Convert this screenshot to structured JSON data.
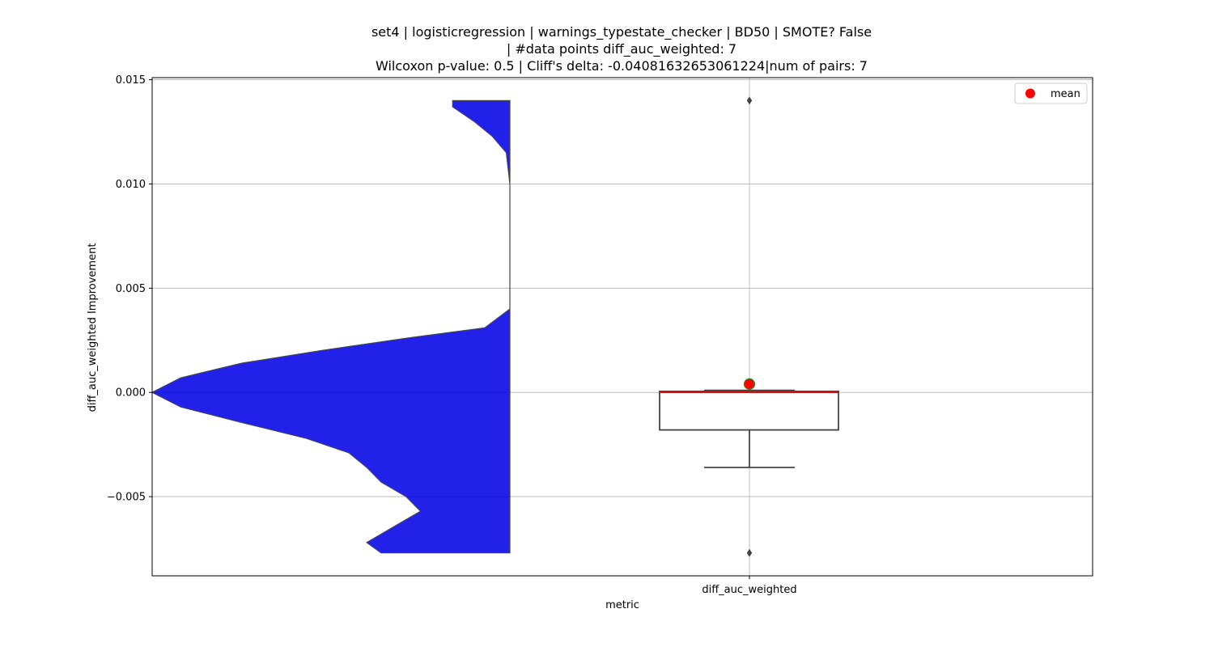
{
  "chart_data": {
    "type": "violin",
    "title_lines": [
      "set4 | logisticregression | warnings_typestate_checker | BD50 | SMOTE? False",
      "| #data points diff_auc_weighted: 7",
      "Wilcoxon p-value: 0.5 | Cliff's delta: -0.04081632653061224|num of pairs: 7"
    ],
    "xlabel": "metric",
    "ylabel": "diff_auc_weighted Improvement",
    "categories": [
      "diff_auc_weighted"
    ],
    "ylim": [
      -0.0088,
      0.0151
    ],
    "yticks": [
      -0.005,
      0.0,
      0.005,
      0.01,
      0.015
    ],
    "ytick_labels": [
      "−0.005",
      "0.000",
      "0.005",
      "0.010",
      "0.015"
    ],
    "grid": true,
    "legend": {
      "placement": "top-right",
      "entries": [
        {
          "label": "mean",
          "marker": "circle",
          "color": "#ff0000"
        }
      ]
    },
    "violin": {
      "color": "#0000e6",
      "range": [
        -0.0077,
        0.014
      ],
      "density_profile": [
        [
          -0.0077,
          0.36
        ],
        [
          -0.0072,
          0.4
        ],
        [
          -0.0064,
          0.32
        ],
        [
          -0.0057,
          0.25
        ],
        [
          -0.005,
          0.29
        ],
        [
          -0.0043,
          0.36
        ],
        [
          -0.0036,
          0.4
        ],
        [
          -0.0029,
          0.45
        ],
        [
          -0.0022,
          0.57
        ],
        [
          -0.0014,
          0.76
        ],
        [
          -0.0007,
          0.92
        ],
        [
          0.0,
          1.0
        ],
        [
          0.0007,
          0.92
        ],
        [
          0.0014,
          0.75
        ],
        [
          0.002,
          0.53
        ],
        [
          0.0026,
          0.29
        ],
        [
          0.0031,
          0.07
        ],
        [
          0.004,
          0.0
        ],
        [
          0.006,
          0.0
        ],
        [
          0.008,
          0.0
        ],
        [
          0.01,
          0.0
        ],
        [
          0.0115,
          0.01
        ],
        [
          0.0123,
          0.05
        ],
        [
          0.013,
          0.1
        ],
        [
          0.0137,
          0.16
        ],
        [
          0.014,
          0.16
        ]
      ]
    },
    "box": {
      "q1": -0.0018,
      "median": 0.0,
      "q3": 5e-05,
      "whisker_low": -0.0036,
      "whisker_high": 0.0001,
      "mean": 0.0004,
      "outliers": [
        0.014,
        -0.0077
      ],
      "mean_color": "#ff0000",
      "median_color": "#ff0000"
    }
  }
}
